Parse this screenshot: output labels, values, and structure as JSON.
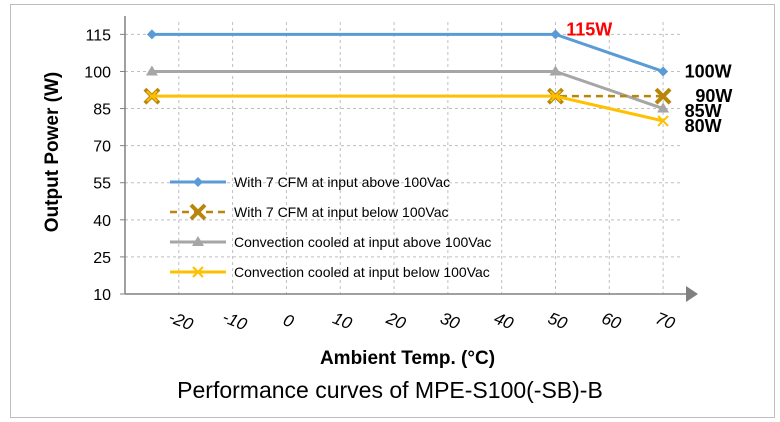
{
  "chart_data": {
    "type": "line",
    "title": "Performance curves of MPE-S100(-SB)-B",
    "xlabel": "Ambient Temp. (°C)",
    "ylabel": "Output Power (W)",
    "xlim": [
      -30,
      75
    ],
    "ylim": [
      10,
      120
    ],
    "x_ticks": [
      -20,
      -10,
      0,
      10,
      20,
      30,
      40,
      50,
      60,
      70
    ],
    "y_ticks": [
      10,
      25,
      40,
      55,
      70,
      85,
      100,
      115
    ],
    "grid": true,
    "legend_position": "left-inside",
    "series": [
      {
        "name": "With 7 CFM at input above 100Vac",
        "color": "#5b9bd5",
        "marker": "diamond",
        "dashed": false,
        "x": [
          -25,
          50,
          70
        ],
        "y": [
          115,
          115,
          100
        ]
      },
      {
        "name": "With 7 CFM at input below 100Vac",
        "color": "#b8860b",
        "marker": "x-big",
        "dashed": true,
        "x": [
          -25,
          50,
          70
        ],
        "y": [
          90,
          90,
          90
        ]
      },
      {
        "name": "Convection cooled at input above 100Vac",
        "color": "#a6a6a6",
        "marker": "triangle",
        "dashed": false,
        "x": [
          -25,
          50,
          70
        ],
        "y": [
          100,
          100,
          85
        ]
      },
      {
        "name": "Convection cooled at input below 100Vac",
        "color": "#ffc000",
        "marker": "x",
        "dashed": false,
        "x": [
          -25,
          50,
          70
        ],
        "y": [
          90,
          90,
          80
        ]
      }
    ],
    "annotations": [
      {
        "text": "115W",
        "x": 52,
        "y": 117,
        "color": "#ff0000"
      },
      {
        "text": "100W",
        "x": 74,
        "y": 100,
        "color": "#000000"
      },
      {
        "text": "90W",
        "x": 76,
        "y": 90,
        "color": "#000000"
      },
      {
        "text": "85W",
        "x": 74,
        "y": 84,
        "color": "#000000"
      },
      {
        "text": "80W",
        "x": 74,
        "y": 78,
        "color": "#000000"
      }
    ]
  }
}
